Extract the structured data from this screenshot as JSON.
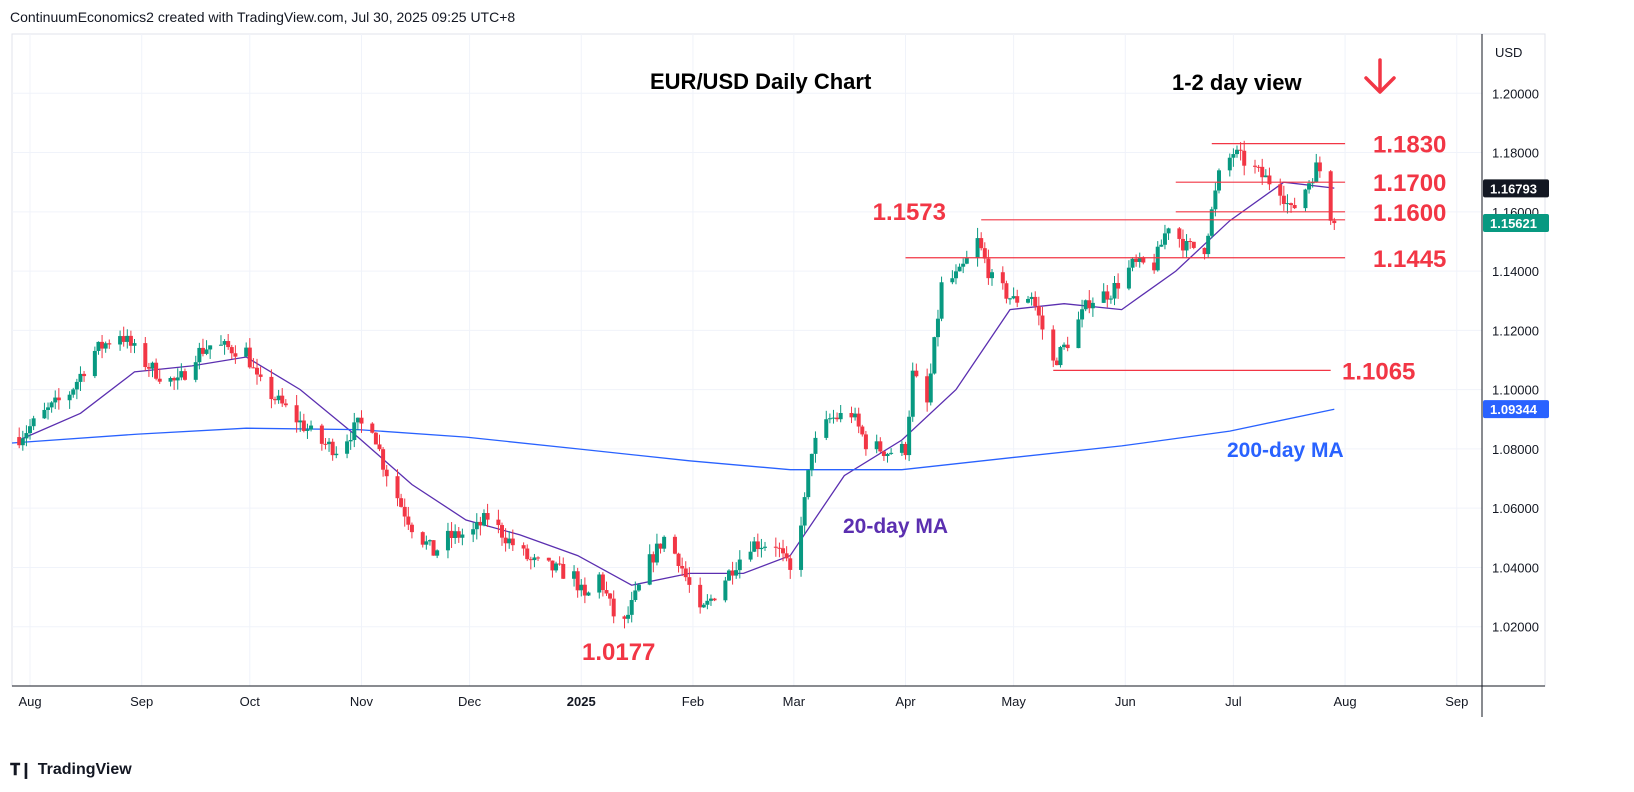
{
  "header": {
    "text": "ContinuumEconomics2 created with TradingView.com, Jul 30, 2025 09:25 UTC+8"
  },
  "footer": {
    "brand": "TradingView",
    "logo_icon": "tradingview-logo-icon"
  },
  "chart_data": {
    "type": "candlestick",
    "title": "EUR/USD Daily Chart",
    "subtitle": "1-2 day view",
    "view_arrow": "down-arrow-icon",
    "currency": "USD",
    "ylim": [
      1.0,
      1.22
    ],
    "y_ticks": [
      1.02,
      1.04,
      1.06,
      1.08,
      1.1,
      1.12,
      1.14,
      1.16,
      1.18,
      1.2
    ],
    "y_tick_labels": [
      "1.02000",
      "1.04000",
      "1.06000",
      "1.08000",
      "1.10000",
      "1.12000",
      "1.14000",
      "1.16000",
      "1.18000",
      "1.20000"
    ],
    "x_range": [
      "2024-07-27",
      "2025-09-08"
    ],
    "x_ticks": [
      {
        "date": "2024-08-01",
        "label": "Aug"
      },
      {
        "date": "2024-09-01",
        "label": "Sep"
      },
      {
        "date": "2024-10-01",
        "label": "Oct"
      },
      {
        "date": "2024-11-01",
        "label": "Nov"
      },
      {
        "date": "2024-12-01",
        "label": "Dec"
      },
      {
        "date": "2025-01-01",
        "label": "2025"
      },
      {
        "date": "2025-02-01",
        "label": "Feb"
      },
      {
        "date": "2025-03-01",
        "label": "Mar"
      },
      {
        "date": "2025-04-01",
        "label": "Apr"
      },
      {
        "date": "2025-05-01",
        "label": "May"
      },
      {
        "date": "2025-06-01",
        "label": "Jun"
      },
      {
        "date": "2025-07-01",
        "label": "Jul"
      },
      {
        "date": "2025-08-01",
        "label": "Aug"
      },
      {
        "date": "2025-09-01",
        "label": "Sep"
      }
    ],
    "price_path": [
      [
        "2024-07-29",
        1.084
      ],
      [
        "2024-08-05",
        1.092
      ],
      [
        "2024-08-12",
        1.099
      ],
      [
        "2024-08-19",
        1.113
      ],
      [
        "2024-08-26",
        1.119
      ],
      [
        "2024-09-02",
        1.109
      ],
      [
        "2024-09-06",
        1.105
      ],
      [
        "2024-09-11",
        1.102
      ],
      [
        "2024-09-16",
        1.112
      ],
      [
        "2024-09-20",
        1.115
      ],
      [
        "2024-09-25",
        1.114
      ],
      [
        "2024-09-30",
        1.113
      ],
      [
        "2024-10-03",
        1.103
      ],
      [
        "2024-10-08",
        1.097
      ],
      [
        "2024-10-14",
        1.09
      ],
      [
        "2024-10-21",
        1.082
      ],
      [
        "2024-10-25",
        1.08
      ],
      [
        "2024-10-31",
        1.088
      ],
      [
        "2024-11-04",
        1.088
      ],
      [
        "2024-11-07",
        1.075
      ],
      [
        "2024-11-12",
        1.061
      ],
      [
        "2024-11-15",
        1.054
      ],
      [
        "2024-11-21",
        1.045
      ],
      [
        "2024-11-25",
        1.05
      ],
      [
        "2024-12-02",
        1.052
      ],
      [
        "2024-12-06",
        1.057
      ],
      [
        "2024-12-12",
        1.049
      ],
      [
        "2024-12-18",
        1.042
      ],
      [
        "2024-12-23",
        1.04
      ],
      [
        "2024-12-30",
        1.037
      ],
      [
        "2025-01-02",
        1.029
      ],
      [
        "2025-01-06",
        1.037
      ],
      [
        "2025-01-10",
        1.024
      ],
      [
        "2025-01-13",
        1.021
      ],
      [
        "2025-01-16",
        1.03
      ],
      [
        "2025-01-20",
        1.042
      ],
      [
        "2025-01-24",
        1.05
      ],
      [
        "2025-01-28",
        1.043
      ],
      [
        "2025-02-03",
        1.024
      ],
      [
        "2025-02-07",
        1.031
      ],
      [
        "2025-02-12",
        1.04
      ],
      [
        "2025-02-17",
        1.048
      ],
      [
        "2025-02-24",
        1.048
      ],
      [
        "2025-02-28",
        1.038
      ],
      [
        "2025-03-04",
        1.062
      ],
      [
        "2025-03-06",
        1.08
      ],
      [
        "2025-03-11",
        1.09
      ],
      [
        "2025-03-17",
        1.092
      ],
      [
        "2025-03-21",
        1.082
      ],
      [
        "2025-03-27",
        1.079
      ],
      [
        "2025-04-01",
        1.08
      ],
      [
        "2025-04-03",
        1.105
      ],
      [
        "2025-04-07",
        1.095
      ],
      [
        "2025-04-11",
        1.135
      ],
      [
        "2025-04-16",
        1.139
      ],
      [
        "2025-04-21",
        1.15
      ],
      [
        "2025-04-25",
        1.137
      ],
      [
        "2025-05-01",
        1.13
      ],
      [
        "2025-05-06",
        1.132
      ],
      [
        "2025-05-12",
        1.109
      ],
      [
        "2025-05-16",
        1.116
      ],
      [
        "2025-05-22",
        1.13
      ],
      [
        "2025-05-28",
        1.133
      ],
      [
        "2025-06-03",
        1.142
      ],
      [
        "2025-06-09",
        1.142
      ],
      [
        "2025-06-13",
        1.156
      ],
      [
        "2025-06-18",
        1.148
      ],
      [
        "2025-06-23",
        1.148
      ],
      [
        "2025-06-27",
        1.172
      ],
      [
        "2025-07-01",
        1.18
      ],
      [
        "2025-07-04",
        1.177
      ],
      [
        "2025-07-09",
        1.172
      ],
      [
        "2025-07-14",
        1.168
      ],
      [
        "2025-07-17",
        1.16
      ],
      [
        "2025-07-21",
        1.168
      ],
      [
        "2025-07-24",
        1.175
      ],
      [
        "2025-07-25",
        1.174
      ],
      [
        "2025-07-28",
        1.159
      ],
      [
        "2025-07-29",
        1.1562
      ]
    ],
    "series": [
      {
        "name": "20-day MA",
        "color": "#5b2fb0",
        "points": [
          [
            "2024-07-29",
            1.083
          ],
          [
            "2024-08-15",
            1.092
          ],
          [
            "2024-08-30",
            1.106
          ],
          [
            "2024-09-15",
            1.108
          ],
          [
            "2024-09-30",
            1.111
          ],
          [
            "2024-10-15",
            1.1
          ],
          [
            "2024-10-31",
            1.084
          ],
          [
            "2024-11-15",
            1.068
          ],
          [
            "2024-11-30",
            1.056
          ],
          [
            "2024-12-15",
            1.051
          ],
          [
            "2024-12-31",
            1.044
          ],
          [
            "2025-01-15",
            1.034
          ],
          [
            "2025-01-31",
            1.038
          ],
          [
            "2025-02-15",
            1.038
          ],
          [
            "2025-02-28",
            1.044
          ],
          [
            "2025-03-15",
            1.071
          ],
          [
            "2025-03-31",
            1.083
          ],
          [
            "2025-04-15",
            1.1
          ],
          [
            "2025-04-30",
            1.127
          ],
          [
            "2025-05-15",
            1.129
          ],
          [
            "2025-05-31",
            1.127
          ],
          [
            "2025-06-15",
            1.14
          ],
          [
            "2025-06-30",
            1.157
          ],
          [
            "2025-07-15",
            1.17
          ],
          [
            "2025-07-29",
            1.168
          ]
        ]
      },
      {
        "name": "200-day MA",
        "color": "#2962ff",
        "points": [
          [
            "2024-07-27",
            1.082
          ],
          [
            "2024-08-31",
            1.085
          ],
          [
            "2024-09-30",
            1.087
          ],
          [
            "2024-10-31",
            1.0865
          ],
          [
            "2024-11-30",
            1.084
          ],
          [
            "2024-12-31",
            1.08
          ],
          [
            "2025-01-31",
            1.076
          ],
          [
            "2025-02-28",
            1.073
          ],
          [
            "2025-03-31",
            1.073
          ],
          [
            "2025-04-30",
            1.077
          ],
          [
            "2025-05-31",
            1.081
          ],
          [
            "2025-06-30",
            1.086
          ],
          [
            "2025-07-29",
            1.0934
          ]
        ]
      }
    ],
    "levels": [
      {
        "label": "1.1830",
        "value": 1.183,
        "from": "2025-06-25",
        "to": "2025-08-01"
      },
      {
        "label": "1.1700",
        "value": 1.17,
        "from": "2025-06-15",
        "to": "2025-08-01"
      },
      {
        "label": "1.1600",
        "value": 1.16,
        "from": "2025-06-15",
        "to": "2025-08-01"
      },
      {
        "label": "1.1573",
        "value": 1.1573,
        "from": "2025-04-22",
        "to": "2025-08-01"
      },
      {
        "label": "1.1445",
        "value": 1.1445,
        "from": "2025-04-01",
        "to": "2025-08-01"
      },
      {
        "label": "1.1065",
        "value": 1.1065,
        "from": "2025-05-12",
        "to": "2025-07-28"
      }
    ],
    "low_label": {
      "label": "1.0177",
      "value": 1.0177,
      "date": "2025-01-13"
    },
    "annotations": [
      {
        "text": "20-day MA",
        "color": "#5b2fb0"
      },
      {
        "text": "200-day MA",
        "color": "#2962ff"
      }
    ],
    "price_badges": [
      {
        "label": "1.16793",
        "value": 1.16793,
        "color": "#131722"
      },
      {
        "label": "1.15621",
        "value": 1.15621,
        "color": "#089981"
      },
      {
        "label": "1.09344",
        "value": 1.09344,
        "color": "#2962ff"
      }
    ],
    "candle_colors": {
      "up": "#089981",
      "down": "#f23645"
    }
  }
}
